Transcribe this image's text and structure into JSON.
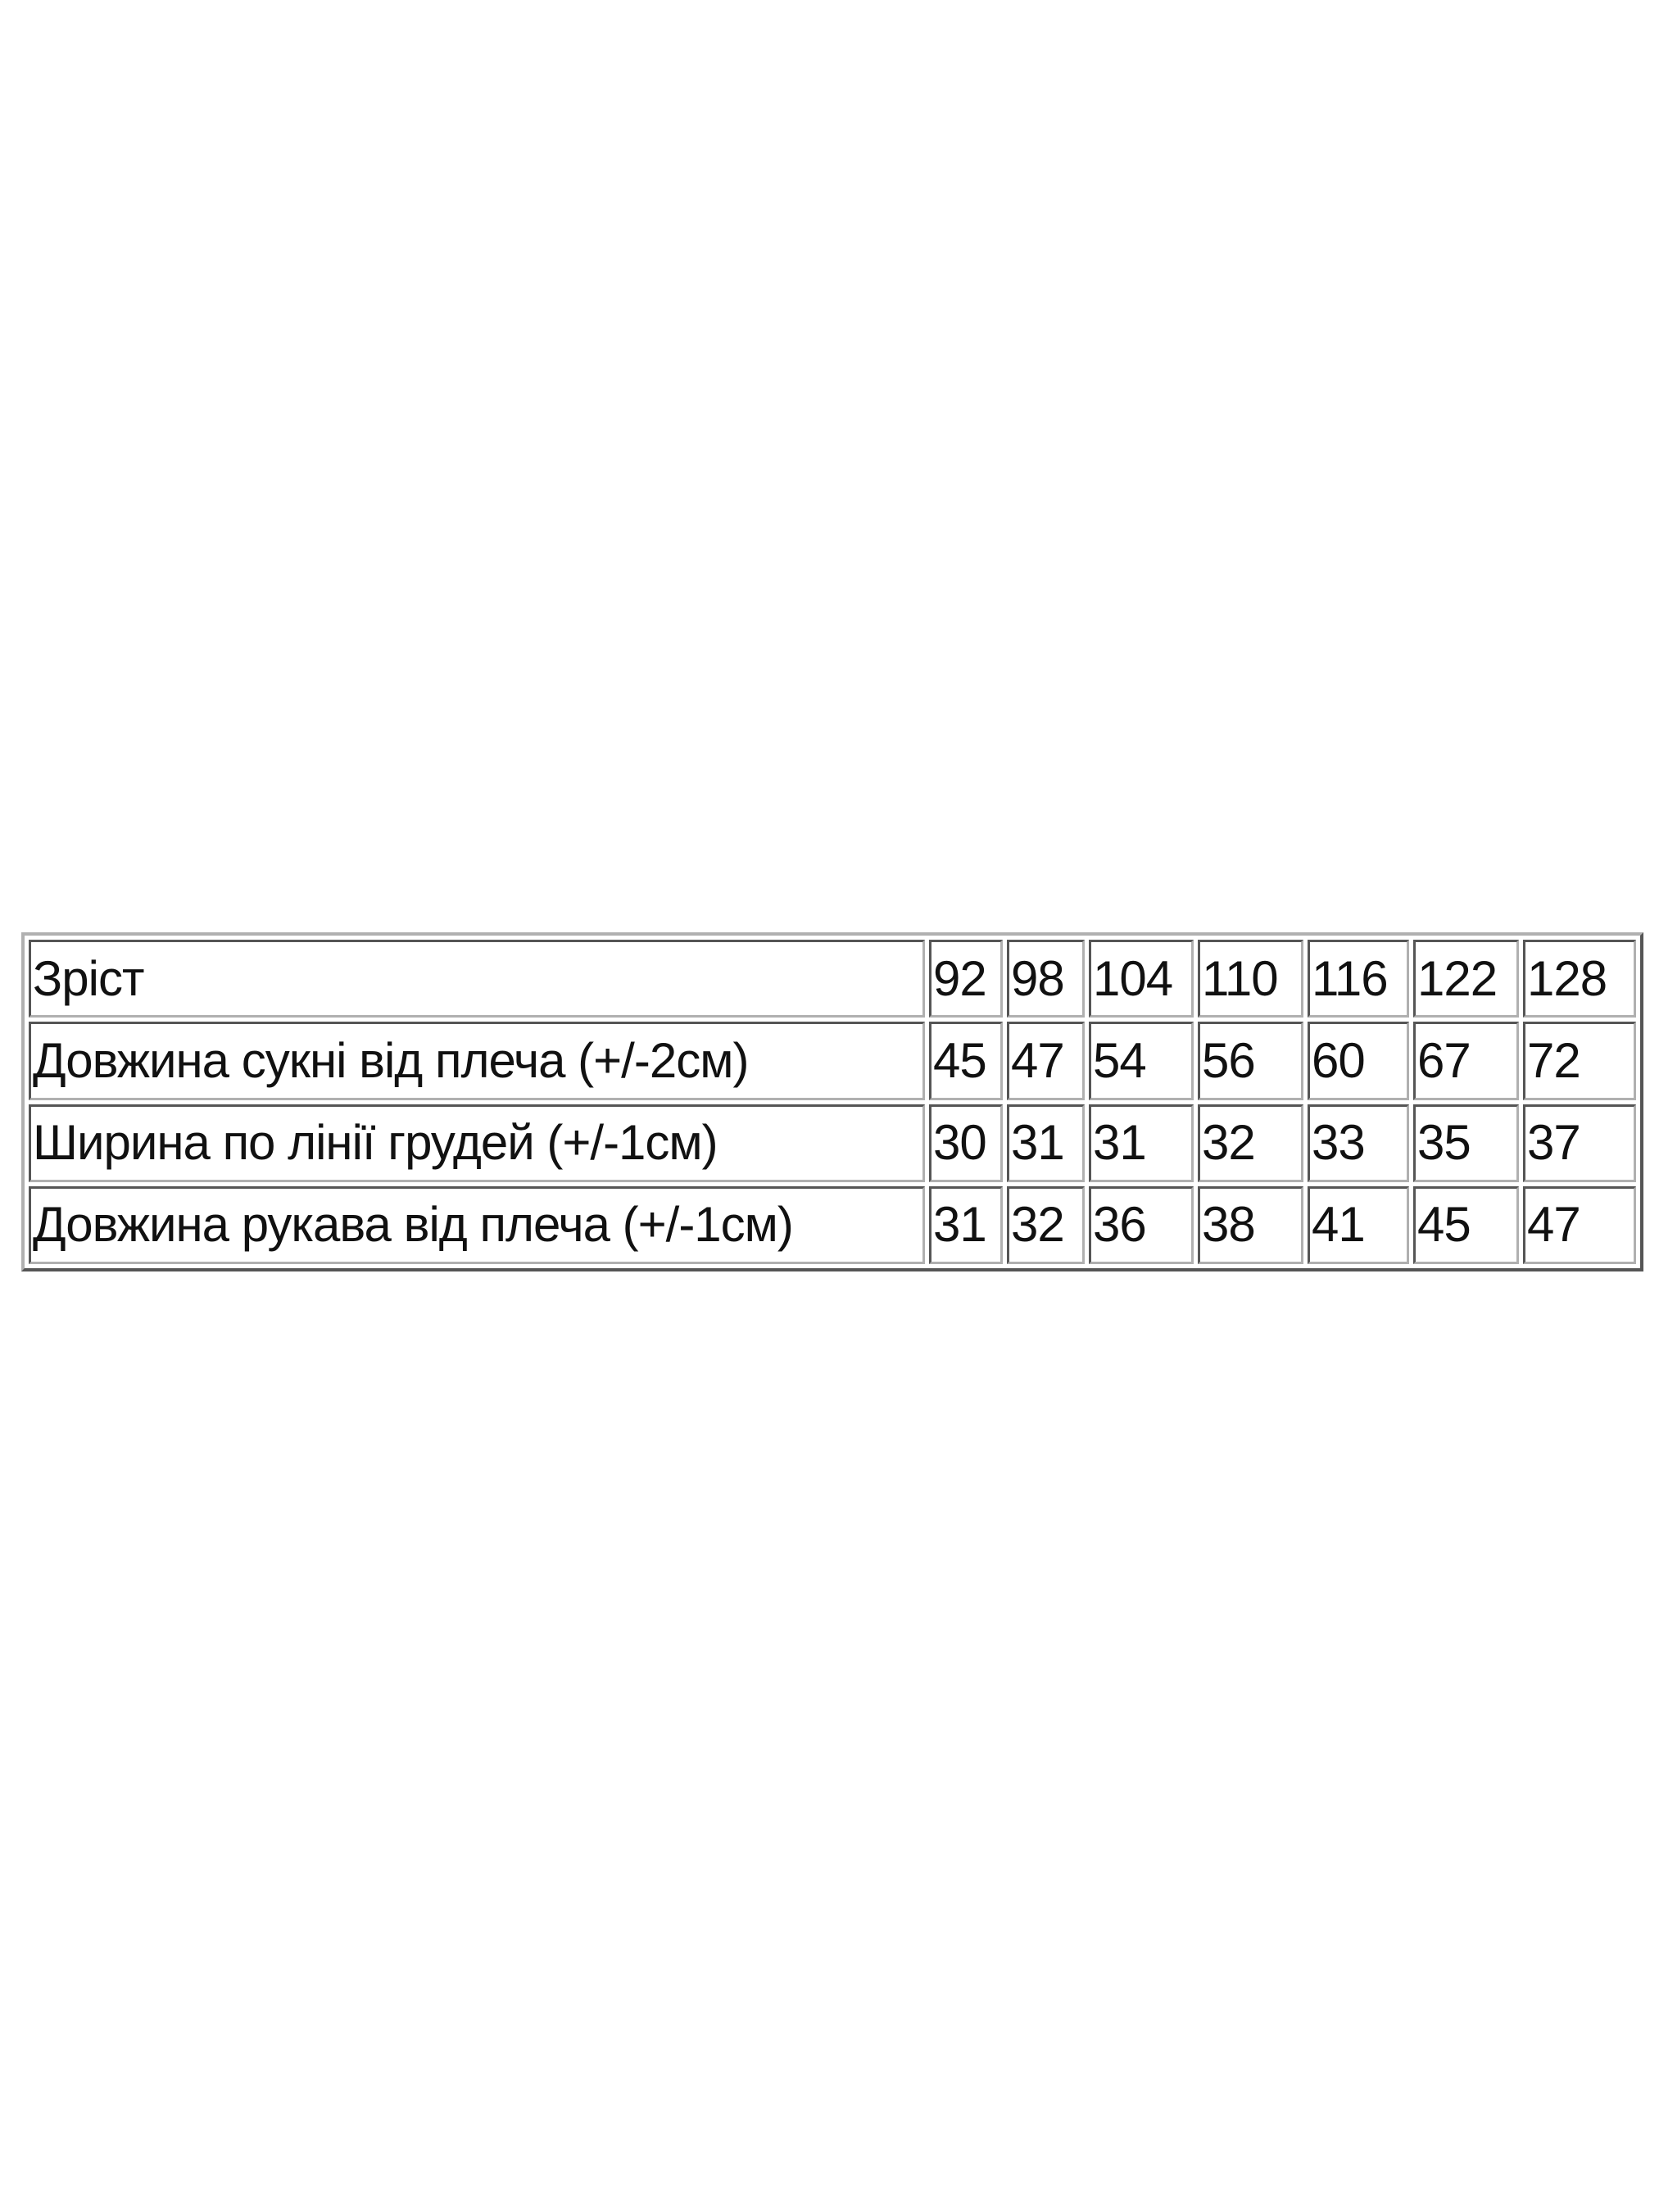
{
  "table": {
    "header": {
      "label": "Зріст",
      "values": [
        "92",
        "98",
        "104",
        "110",
        "116",
        "122",
        "128"
      ]
    },
    "rows": [
      {
        "label": "Довжина сукні від плеча (+/-2см)",
        "values": [
          "45",
          "47",
          "54",
          "56",
          "60",
          "67",
          "72"
        ]
      },
      {
        "label": "Ширина по лінії грудей (+/-1см)",
        "values": [
          "30",
          "31",
          "31",
          "32",
          "33",
          "35",
          "37"
        ]
      },
      {
        "label": "Довжина рукава від плеча (+/-1см)",
        "values": [
          "31",
          "32",
          "36",
          "38",
          "41",
          "45",
          "47"
        ]
      }
    ]
  }
}
